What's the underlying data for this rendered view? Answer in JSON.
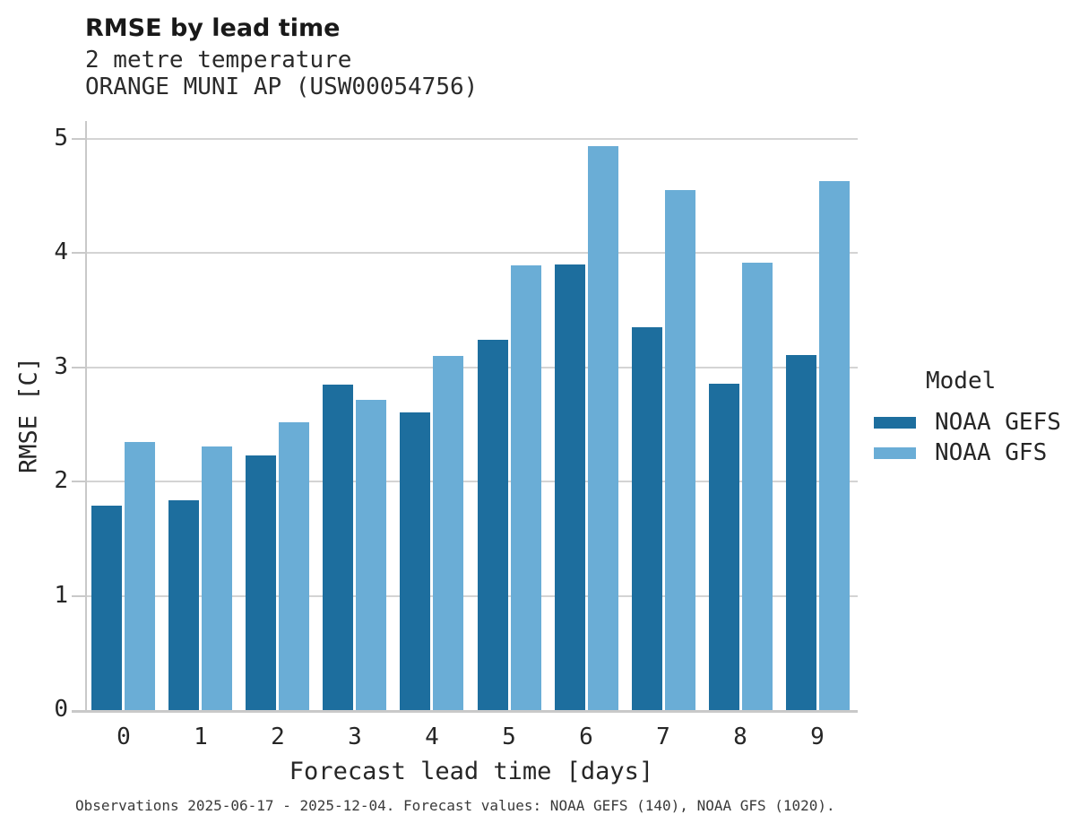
{
  "header": {
    "title": "RMSE by lead time",
    "subtitle1": "2 metre temperature",
    "subtitle2": "ORANGE MUNI AP (USW00054756)"
  },
  "chart_data": {
    "type": "bar",
    "title": "RMSE by lead time",
    "subtitle": [
      "2 metre temperature",
      "ORANGE MUNI AP (USW00054756)"
    ],
    "categories": [
      "0",
      "1",
      "2",
      "3",
      "4",
      "5",
      "6",
      "7",
      "8",
      "9"
    ],
    "series": [
      {
        "name": "NOAA GEFS",
        "color": "#1d6e9e",
        "values": [
          1.79,
          1.84,
          2.23,
          2.85,
          2.61,
          3.24,
          3.9,
          3.35,
          2.86,
          3.11
        ]
      },
      {
        "name": "NOAA GFS",
        "color": "#6aadd6",
        "values": [
          2.35,
          2.31,
          2.52,
          2.72,
          3.1,
          3.89,
          4.94,
          4.55,
          3.92,
          4.63
        ]
      }
    ],
    "xlabel": "Forecast lead time [days]",
    "ylabel": "RMSE [C]",
    "ylim": [
      0,
      5.16
    ],
    "yticks": [
      0,
      1,
      2,
      3,
      4,
      5
    ],
    "legend_title": "Model",
    "legend_position": "right",
    "grid": "horizontal",
    "gridline_color": "#d4d4d4",
    "background_color": "#ffffff"
  },
  "footer": {
    "caption": "Observations 2025-06-17 - 2025-12-04. Forecast values: NOAA GEFS (140), NOAA GFS (1020)."
  }
}
